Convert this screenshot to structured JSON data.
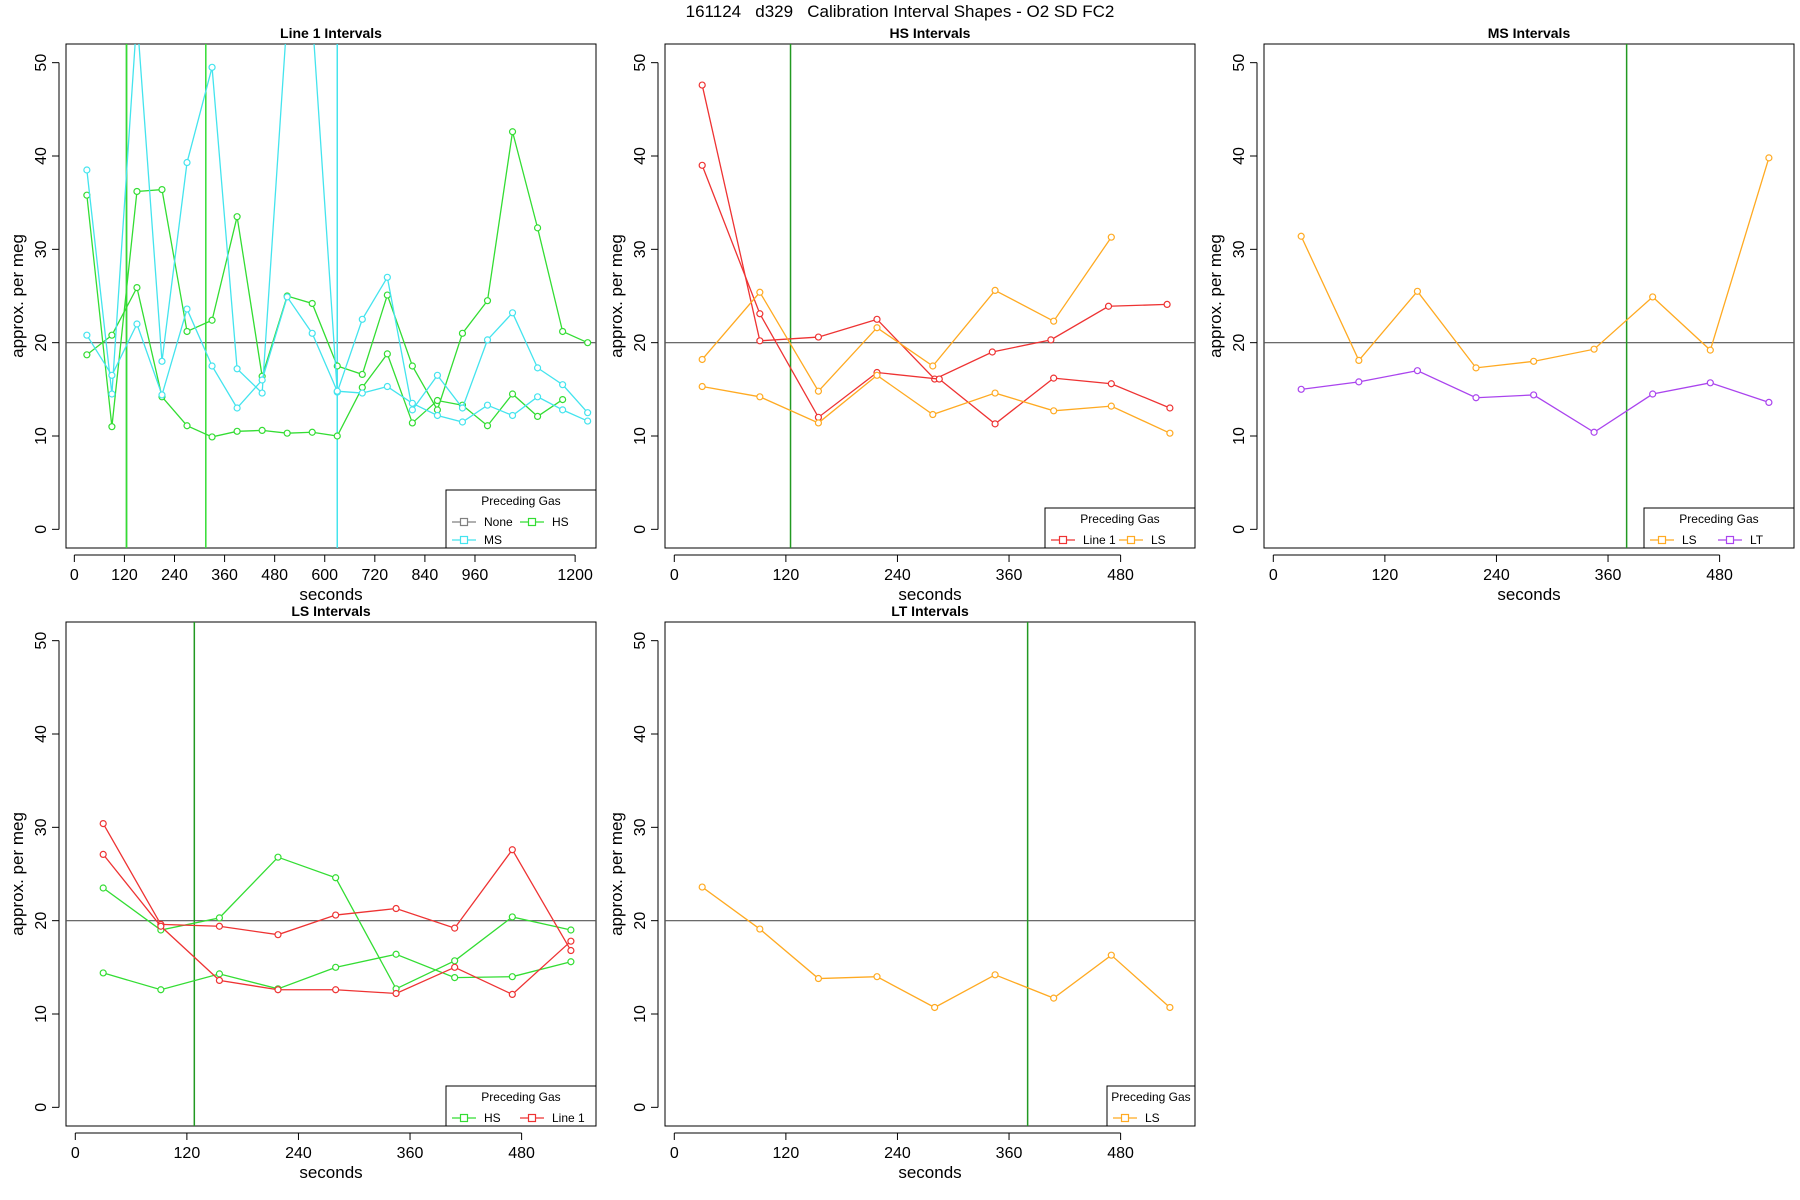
{
  "page_title": "161124   d329   Calibration Interval Shapes - O2 SD FC2",
  "colors": {
    "None": "#808080",
    "HS": "#33dd33",
    "MS": "#44e4ee",
    "Line 1": "#ee3333",
    "LS": "#ffaa22",
    "LT": "#aa44ee",
    "vline": "#229922",
    "hline": "#555555"
  },
  "chart_data": [
    {
      "type": "line",
      "title": "Line 1 Intervals",
      "xlabel": "seconds",
      "ylabel": "approx. per meg",
      "xlim": [
        -20,
        1250
      ],
      "ylim": [
        -2,
        52
      ],
      "xticks": [
        0,
        120,
        240,
        360,
        480,
        600,
        720,
        840,
        960,
        1200
      ],
      "yticks": [
        0,
        10,
        20,
        30,
        40,
        50
      ],
      "hline": 20,
      "vlines": [
        {
          "x": 125,
          "color": "vline"
        },
        {
          "x": 125,
          "color": "HS"
        },
        {
          "x": 315,
          "color": "HS"
        },
        {
          "x": 630,
          "color": "MS"
        }
      ],
      "legend": {
        "title": "Preceding Gas",
        "position": "bottom-right",
        "entries": [
          "None",
          "HS",
          "MS"
        ]
      },
      "series": [
        {
          "name": "HS",
          "x": [
            30,
            90,
            150,
            210,
            270,
            330,
            390,
            450,
            510,
            570,
            630,
            690,
            750,
            810,
            870,
            930,
            990,
            1050,
            1110,
            1170,
            1230
          ],
          "y": [
            35.8,
            11.0,
            36.2,
            36.4,
            21.2,
            22.4,
            33.5,
            16.4,
            25.0,
            24.2,
            17.5,
            16.6,
            25.1,
            17.5,
            12.8,
            21.0,
            24.5,
            42.6,
            32.3,
            21.2,
            20.0
          ]
        },
        {
          "name": "HS",
          "x": [
            30,
            90,
            150,
            210,
            270,
            330,
            390,
            450,
            510,
            570,
            630,
            690,
            750,
            810,
            870,
            930,
            990,
            1050,
            1110,
            1170
          ],
          "y": [
            18.7,
            20.8,
            25.9,
            14.2,
            11.1,
            9.9,
            10.5,
            10.6,
            10.3,
            10.4,
            10.0,
            15.2,
            18.8,
            11.4,
            13.8,
            13.3,
            11.1,
            14.5,
            12.1,
            13.9
          ]
        },
        {
          "name": "MS",
          "x": [
            30,
            90,
            150,
            210,
            270,
            330,
            390,
            450,
            510,
            570,
            630,
            690,
            750,
            810,
            870,
            930,
            990,
            1050,
            1110,
            1170,
            1230
          ],
          "y": [
            38.5,
            14.5,
            55,
            18.0,
            39.3,
            49.5,
            17.2,
            14.6,
            55,
            55,
            14.7,
            22.5,
            27.0,
            12.8,
            16.5,
            13.0,
            20.3,
            23.2,
            17.3,
            15.5,
            12.5
          ]
        },
        {
          "name": "MS",
          "x": [
            30,
            90,
            150,
            210,
            270,
            330,
            390,
            450,
            510,
            570,
            630,
            690,
            750,
            810,
            870,
            930,
            990,
            1050,
            1110,
            1170,
            1230
          ],
          "y": [
            20.8,
            16.5,
            22.0,
            14.4,
            23.6,
            17.5,
            13.0,
            16.0,
            24.9,
            21.0,
            14.8,
            14.6,
            15.3,
            13.5,
            12.2,
            11.5,
            13.3,
            12.2,
            14.2,
            12.8,
            11.6
          ]
        }
      ]
    },
    {
      "type": "line",
      "title": "HS Intervals",
      "xlabel": "seconds",
      "ylabel": "approx. per meg",
      "xlim": [
        -10,
        560
      ],
      "ylim": [
        -2,
        52
      ],
      "xticks": [
        0,
        120,
        240,
        360,
        480
      ],
      "yticks": [
        0,
        10,
        20,
        30,
        40,
        50
      ],
      "hline": 20,
      "vlines": [
        {
          "x": 125,
          "color": "vline"
        }
      ],
      "legend": {
        "title": "Preceding Gas",
        "position": "bottom-right",
        "entries": [
          "Line 1",
          "LS"
        ]
      },
      "series": [
        {
          "name": "Line 1",
          "x": [
            30,
            92,
            155,
            218,
            280,
            342,
            405,
            467,
            530
          ],
          "y": [
            47.6,
            20.2,
            20.6,
            22.5,
            16.1,
            19.0,
            20.3,
            23.9,
            24.1
          ]
        },
        {
          "name": "Line 1",
          "x": [
            30,
            92,
            155,
            218,
            285,
            345,
            408,
            470,
            533
          ],
          "y": [
            39.0,
            23.1,
            12.0,
            16.8,
            16.1,
            11.3,
            16.2,
            15.6,
            13.0
          ]
        },
        {
          "name": "LS",
          "x": [
            30,
            92,
            155,
            218,
            278,
            345,
            408,
            470
          ],
          "y": [
            18.2,
            25.4,
            14.8,
            21.6,
            17.5,
            25.6,
            22.3,
            31.3
          ]
        },
        {
          "name": "LS",
          "x": [
            30,
            92,
            155,
            218,
            278,
            345,
            408,
            470,
            533
          ],
          "y": [
            15.3,
            14.2,
            11.4,
            16.5,
            12.3,
            14.6,
            12.7,
            13.2,
            10.3
          ]
        }
      ]
    },
    {
      "type": "line",
      "title": "MS Intervals",
      "xlabel": "seconds",
      "ylabel": "approx. per meg",
      "xlim": [
        -10,
        560
      ],
      "ylim": [
        -2,
        52
      ],
      "xticks": [
        0,
        120,
        240,
        360,
        480
      ],
      "yticks": [
        0,
        10,
        20,
        30,
        40,
        50
      ],
      "hline": 20,
      "vlines": [
        {
          "x": 380,
          "color": "vline"
        }
      ],
      "legend": {
        "title": "Preceding Gas",
        "position": "bottom-right",
        "entries": [
          "LS",
          "LT"
        ]
      },
      "series": [
        {
          "name": "LS",
          "x": [
            30,
            92,
            155,
            218,
            280,
            345,
            408,
            470,
            533
          ],
          "y": [
            31.4,
            18.1,
            25.5,
            17.3,
            18.0,
            19.3,
            24.9,
            19.2,
            39.8
          ]
        },
        {
          "name": "LT",
          "x": [
            30,
            92,
            155,
            218,
            280,
            345,
            408,
            470,
            533
          ],
          "y": [
            15.0,
            15.8,
            17.0,
            14.1,
            14.4,
            10.4,
            14.5,
            15.7,
            13.6
          ]
        }
      ]
    },
    {
      "type": "line",
      "title": "LS Intervals",
      "xlabel": "seconds",
      "ylabel": "approx. per meg",
      "xlim": [
        -10,
        560
      ],
      "ylim": [
        -2,
        52
      ],
      "xticks": [
        0,
        120,
        240,
        360,
        480
      ],
      "yticks": [
        0,
        10,
        20,
        30,
        40,
        50
      ],
      "hline": 20,
      "vlines": [
        {
          "x": 128,
          "color": "vline"
        }
      ],
      "legend": {
        "title": "Preceding Gas",
        "position": "bottom-right",
        "entries": [
          "HS",
          "Line 1"
        ]
      },
      "series": [
        {
          "name": "HS",
          "x": [
            30,
            92,
            155,
            218,
            280,
            345,
            408,
            470,
            533
          ],
          "y": [
            23.5,
            19.0,
            20.3,
            26.8,
            24.6,
            12.7,
            15.7,
            20.4,
            19.0
          ]
        },
        {
          "name": "HS",
          "x": [
            30,
            92,
            155,
            218,
            280,
            345,
            408,
            470,
            533
          ],
          "y": [
            14.4,
            12.6,
            14.3,
            12.7,
            15.0,
            16.4,
            13.9,
            14.0,
            15.6
          ]
        },
        {
          "name": "Line 1",
          "x": [
            30,
            92,
            155,
            218,
            280,
            345,
            408,
            470,
            533
          ],
          "y": [
            30.4,
            19.6,
            19.4,
            18.5,
            20.6,
            21.3,
            19.2,
            27.6,
            16.8
          ]
        },
        {
          "name": "Line 1",
          "x": [
            30,
            92,
            155,
            218,
            280,
            345,
            408,
            470,
            533
          ],
          "y": [
            27.1,
            19.4,
            13.6,
            12.6,
            12.6,
            12.2,
            15.0,
            12.1,
            17.8
          ]
        }
      ]
    },
    {
      "type": "line",
      "title": "LT Intervals",
      "xlabel": "seconds",
      "ylabel": "approx. per meg",
      "xlim": [
        -10,
        560
      ],
      "ylim": [
        -2,
        52
      ],
      "xticks": [
        0,
        120,
        240,
        360,
        480
      ],
      "yticks": [
        0,
        10,
        20,
        30,
        40,
        50
      ],
      "hline": 20,
      "vlines": [
        {
          "x": 380,
          "color": "vline"
        }
      ],
      "legend": {
        "title": "Preceding Gas",
        "position": "bottom-right",
        "entries": [
          "LS"
        ]
      },
      "series": [
        {
          "name": "LS",
          "x": [
            30,
            92,
            155,
            218,
            280,
            345,
            408,
            470,
            533
          ],
          "y": [
            23.6,
            19.1,
            13.8,
            14.0,
            10.7,
            14.2,
            11.7,
            16.3,
            10.7
          ]
        }
      ]
    }
  ]
}
